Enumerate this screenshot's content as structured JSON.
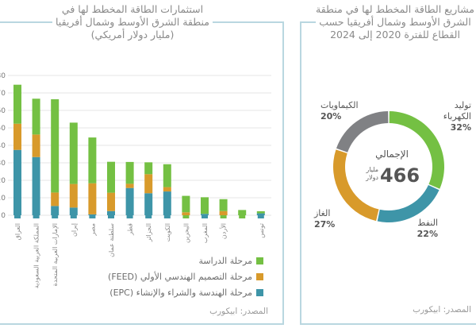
{
  "left": {
    "title": [
      "استثمارات الطاقة المخطط لها في",
      "منطقة الشرق الأوسط وشمال أفريقيا",
      "(مليار دولار أمريكي)"
    ],
    "source": "المصدر: ابيكورب"
  },
  "right": {
    "title": [
      "مشاريع الطاقة المخطط لها في منطقة",
      "الشرق الأوسط وشمال أفريقيا حسب",
      "القطاع للفترة 2020 إلى 2024"
    ],
    "source": "المصدر: ابيكورب"
  },
  "chart_data": [
    {
      "type": "bar",
      "stacked": true,
      "categories": [
        "العراق",
        "المملكة العربية السعودية",
        "الإمارات العربية المتحدة",
        "إيران",
        "مصر",
        "سلطنة عمان",
        "قطر",
        "الجزائر",
        "الكويت",
        "البحرين",
        "المغرب",
        "الأردن",
        "",
        "تونس"
      ],
      "series": [
        {
          "name": "مرحلة الهندسة والشراء والإنشاء (EPC)",
          "color": "#3e95a8",
          "values": [
            37.4,
            33.3,
            5.3,
            4.4,
            0.5,
            2.4,
            15.6,
            12.6,
            13.6,
            0,
            0.8,
            0,
            0,
            1.1
          ]
        },
        {
          "name": "مرحلة التصميم الهندسي الأولي (FEED)",
          "color": "#d89a2b",
          "values": [
            15,
            12.9,
            7.7,
            13.5,
            17.8,
            10.5,
            2.4,
            10.9,
            2.5,
            1.7,
            0,
            2.4,
            0,
            0
          ]
        },
        {
          "name": "مرحلة الدراسة",
          "color": "#74c043",
          "values": [
            22.3,
            20.5,
            53.4,
            35.1,
            26.2,
            17.7,
            12.5,
            6.8,
            13.1,
            9.4,
            9.5,
            6.8,
            3,
            1.2
          ]
        }
      ],
      "legend_order": [
        2,
        1,
        0
      ],
      "ylim": [
        0,
        80
      ],
      "yticks": [
        0,
        10,
        20,
        30,
        40,
        50,
        60,
        70,
        80
      ],
      "grid": true
    },
    {
      "type": "pie",
      "donut": true,
      "center_label": "الإجمالي",
      "center_value": "466",
      "center_unit": [
        "مليار",
        "دولار"
      ],
      "slices": [
        {
          "label": "توليد الكهرباء",
          "value": 32,
          "pct": "32%",
          "color": "#74c043"
        },
        {
          "label": "النفط",
          "value": 22,
          "pct": "22%",
          "color": "#3e95a8"
        },
        {
          "label": "الغاز",
          "value": 27,
          "pct": "27%",
          "color": "#d89a2b"
        },
        {
          "label": "الكيماويات",
          "value": 20,
          "pct": "20%",
          "color": "#808184"
        }
      ]
    }
  ]
}
